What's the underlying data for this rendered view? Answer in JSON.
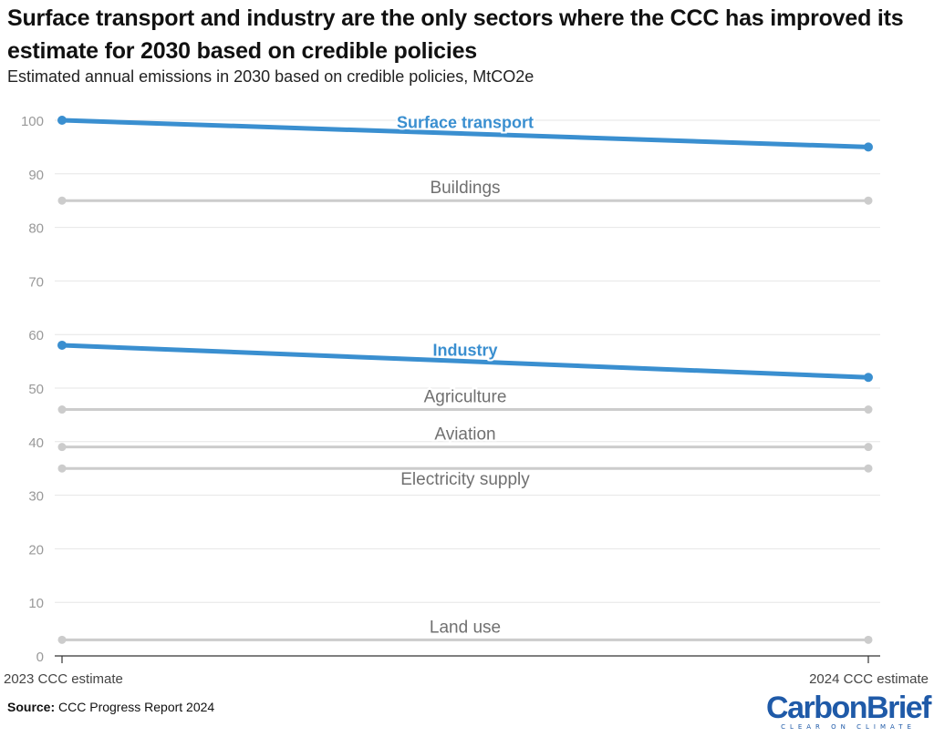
{
  "header": {
    "title": "Surface transport and industry are the only sectors where the CCC has improved its estimate for 2030 based on credible policies",
    "subtitle": "Estimated annual emissions in 2030 based on credible policies, MtCO2e"
  },
  "footer": {
    "source_label": "Source:",
    "source_text": "CCC Progress Report 2024",
    "logo_text": "CarbonBrief",
    "logo_tagline": "CLEAR ON CLIMATE"
  },
  "colors": {
    "highlight": "#3a8fd0",
    "muted_line": "#cccccc",
    "muted_label": "#707070",
    "grid": "#e6e6e6",
    "axis_text": "#999999"
  },
  "chart_data": {
    "type": "line",
    "title": "Surface transport and industry are the only sectors where the CCC has improved its estimate for 2030 based on credible policies",
    "subtitle": "Estimated annual emissions in 2030 based on credible policies, MtCO2e",
    "xlabel": "",
    "ylabel": "",
    "x": [
      "2023 CCC estimate",
      "2024 CCC estimate"
    ],
    "ylim": [
      0,
      100
    ],
    "yticks": [
      0,
      10,
      20,
      30,
      40,
      50,
      60,
      70,
      80,
      90,
      100
    ],
    "grid": true,
    "series": [
      {
        "name": "Surface transport",
        "values": [
          100,
          95
        ],
        "highlight": true
      },
      {
        "name": "Buildings",
        "values": [
          85,
          85
        ],
        "highlight": false
      },
      {
        "name": "Industry",
        "values": [
          58,
          52
        ],
        "highlight": true
      },
      {
        "name": "Agriculture",
        "values": [
          46,
          46
        ],
        "highlight": false
      },
      {
        "name": "Aviation",
        "values": [
          39,
          39
        ],
        "highlight": false
      },
      {
        "name": "Electricity supply",
        "values": [
          35,
          35
        ],
        "highlight": false
      },
      {
        "name": "Land use",
        "values": [
          3,
          3
        ],
        "highlight": false
      }
    ]
  }
}
